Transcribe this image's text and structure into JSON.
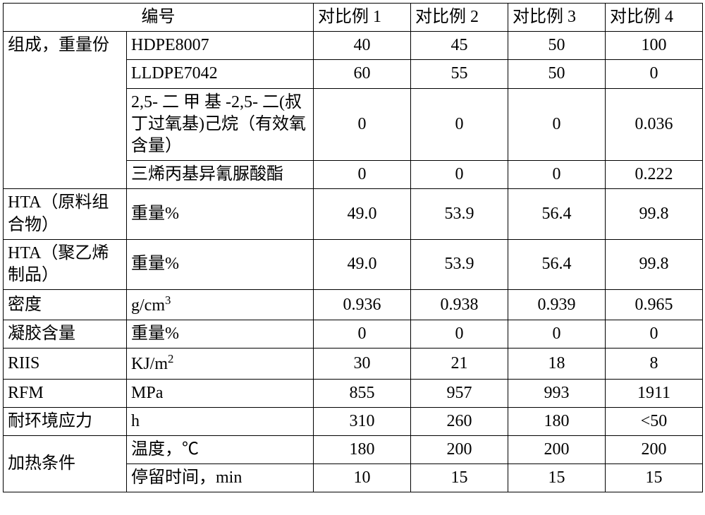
{
  "table": {
    "header": {
      "bianhao": "编号",
      "col1": "对比例 1",
      "col2": "对比例 2",
      "col3": "对比例 3",
      "col4": "对比例 4"
    },
    "group1": {
      "label": "组成，重量份",
      "r1": {
        "label": "HDPE8007",
        "v1": "40",
        "v2": "45",
        "v3": "50",
        "v4": "100"
      },
      "r2": {
        "label": "LLDPE7042",
        "v1": "60",
        "v2": "55",
        "v3": "50",
        "v4": "0"
      },
      "r3": {
        "label": "2,5- 二 甲 基 -2,5- 二(叔丁过氧基)己烷（有效氧含量）",
        "v1": "0",
        "v2": "0",
        "v3": "0",
        "v4": "0.036"
      },
      "r4": {
        "label": "三烯丙基异氰脲酸酯",
        "v1": "0",
        "v2": "0",
        "v3": "0",
        "v4": "0.222"
      }
    },
    "row_hta_raw": {
      "label": "HTA（原料组合物）",
      "unit": "重量%",
      "v1": "49.0",
      "v2": "53.9",
      "v3": "56.4",
      "v4": "99.8"
    },
    "row_hta_prod": {
      "label": "HTA（聚乙烯制品）",
      "unit": "重量%",
      "v1": "49.0",
      "v2": "53.9",
      "v3": "56.4",
      "v4": "99.8"
    },
    "row_density": {
      "label": "密度",
      "unit_pre": "g/cm",
      "unit_sup": "3",
      "v1": "0.936",
      "v2": "0.938",
      "v3": "0.939",
      "v4": "0.965"
    },
    "row_gel": {
      "label": "凝胶含量",
      "unit": "重量%",
      "v1": "0",
      "v2": "0",
      "v3": "0",
      "v4": "0"
    },
    "row_riis": {
      "label": "RIIS",
      "unit_pre": "KJ/m",
      "unit_sup": "2",
      "v1": "30",
      "v2": "21",
      "v3": "18",
      "v4": "8"
    },
    "row_rfm": {
      "label": "RFM",
      "unit": "MPa",
      "v1": "855",
      "v2": "957",
      "v3": "993",
      "v4": "1911"
    },
    "row_env": {
      "label": " 耐环境应力",
      "unit": "h",
      "v1": "310",
      "v2": "260",
      "v3": "180",
      "v4": "<50"
    },
    "group_heat": {
      "label": "加热条件",
      "r1": {
        "label": "温度，℃",
        "v1": "180",
        "v2": "200",
        "v3": "200",
        "v4": "200"
      },
      "r2": {
        "label": "停留时间，min",
        "v1": "10",
        "v2": "15",
        "v3": "15",
        "v4": "15"
      }
    }
  }
}
